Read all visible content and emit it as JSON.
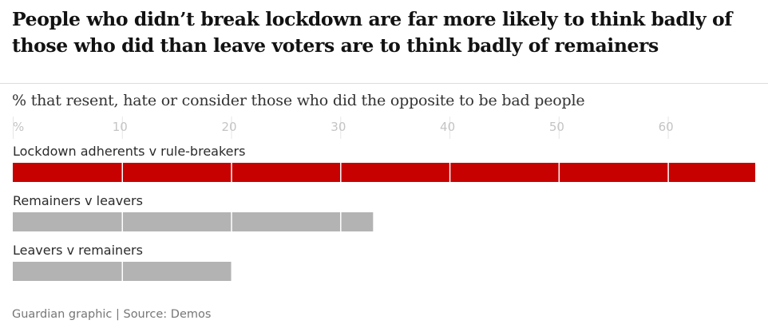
{
  "header": {
    "title": "People who didn’t break lockdown are far more likely to think badly of those who did than leave voters are to think badly of remainers",
    "subtitle": "% that resent, hate or consider those who did the opposite to be bad people"
  },
  "footer": {
    "source": "Guardian graphic | Source: Demos"
  },
  "colors": {
    "highlight": "#c70000",
    "muted": "#b3b3b3",
    "gridline": "#ffffff",
    "axis_text": "#c4c4c4"
  },
  "chart_data": {
    "type": "bar",
    "orientation": "horizontal",
    "x_unit_label": "%",
    "x_ticks": [
      10,
      20,
      30,
      40,
      50,
      60
    ],
    "xlim": [
      0,
      68
    ],
    "grid": true,
    "categories": [
      "Lockdown adherents v rule-breakers",
      "Remainers v leavers",
      "Leavers v remainers"
    ],
    "values": [
      68,
      33,
      20
    ],
    "bar_colors": [
      "highlight",
      "muted",
      "muted"
    ]
  }
}
